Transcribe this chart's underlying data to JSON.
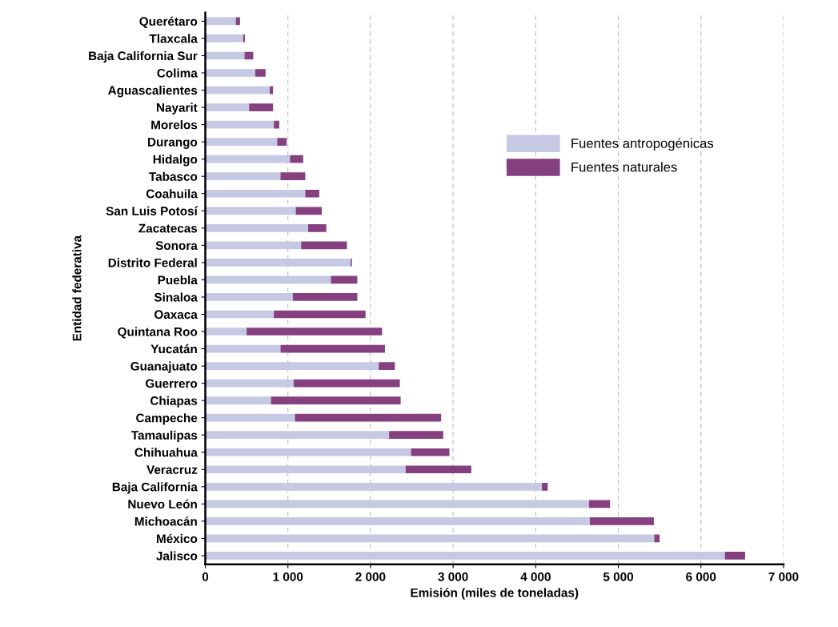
{
  "chart_data": {
    "type": "bar",
    "orientation": "horizontal",
    "stacked": true,
    "xlabel": "Emisión (miles de toneladas)",
    "ylabel": "Entidad federativa",
    "categories": [
      "Querétaro",
      "Tlaxcala",
      "Baja California Sur",
      "Colima",
      "Aguascalientes",
      "Nayarit",
      "Morelos",
      "Durango",
      "Hidalgo",
      "Tabasco",
      "Coahuila",
      "San Luis Potosí",
      "Zacatecas",
      "Sonora",
      "Distrito Federal",
      "Puebla",
      "Sinaloa",
      "Oaxaca",
      "Quintana Roo",
      "Yucatán",
      "Guanajuato",
      "Guerrero",
      "Chiapas",
      "Campeche",
      "Tamaulipas",
      "Chihuahua",
      "Veracruz",
      "Baja California",
      "Nuevo León",
      "Michoacán",
      "México",
      "Jalisco"
    ],
    "series": [
      {
        "name": "Fuentes antropogénicas",
        "color": "#c5c9e3",
        "values": [
          370,
          460,
          475,
          605,
          780,
          530,
          830,
          870,
          1025,
          910,
          1210,
          1095,
          1245,
          1160,
          1760,
          1520,
          1060,
          830,
          500,
          910,
          2100,
          1070,
          795,
          1085,
          2225,
          2490,
          2425,
          4075,
          4645,
          4655,
          5435,
          6290
        ]
      },
      {
        "name": "Fuentes naturales",
        "color": "#85407f",
        "values": [
          50,
          20,
          105,
          125,
          40,
          290,
          65,
          115,
          160,
          300,
          170,
          315,
          220,
          555,
          15,
          320,
          780,
          1110,
          1640,
          1265,
          195,
          1285,
          1570,
          1770,
          655,
          465,
          795,
          70,
          255,
          775,
          65,
          245
        ]
      }
    ],
    "xlim": [
      0,
      7000
    ],
    "xticks": [
      0,
      {
        "value": 1000,
        "label": "1 000"
      },
      {
        "value": 2000,
        "label": "2 000"
      },
      {
        "value": 3000,
        "label": "3 000"
      },
      {
        "value": 4000,
        "label": "4 000"
      },
      {
        "value": 5000,
        "label": "5 000"
      },
      {
        "value": 6000,
        "label": "6 000"
      },
      {
        "value": 7000,
        "label": "7 000"
      }
    ],
    "grid": "x",
    "legend": "upper right"
  }
}
